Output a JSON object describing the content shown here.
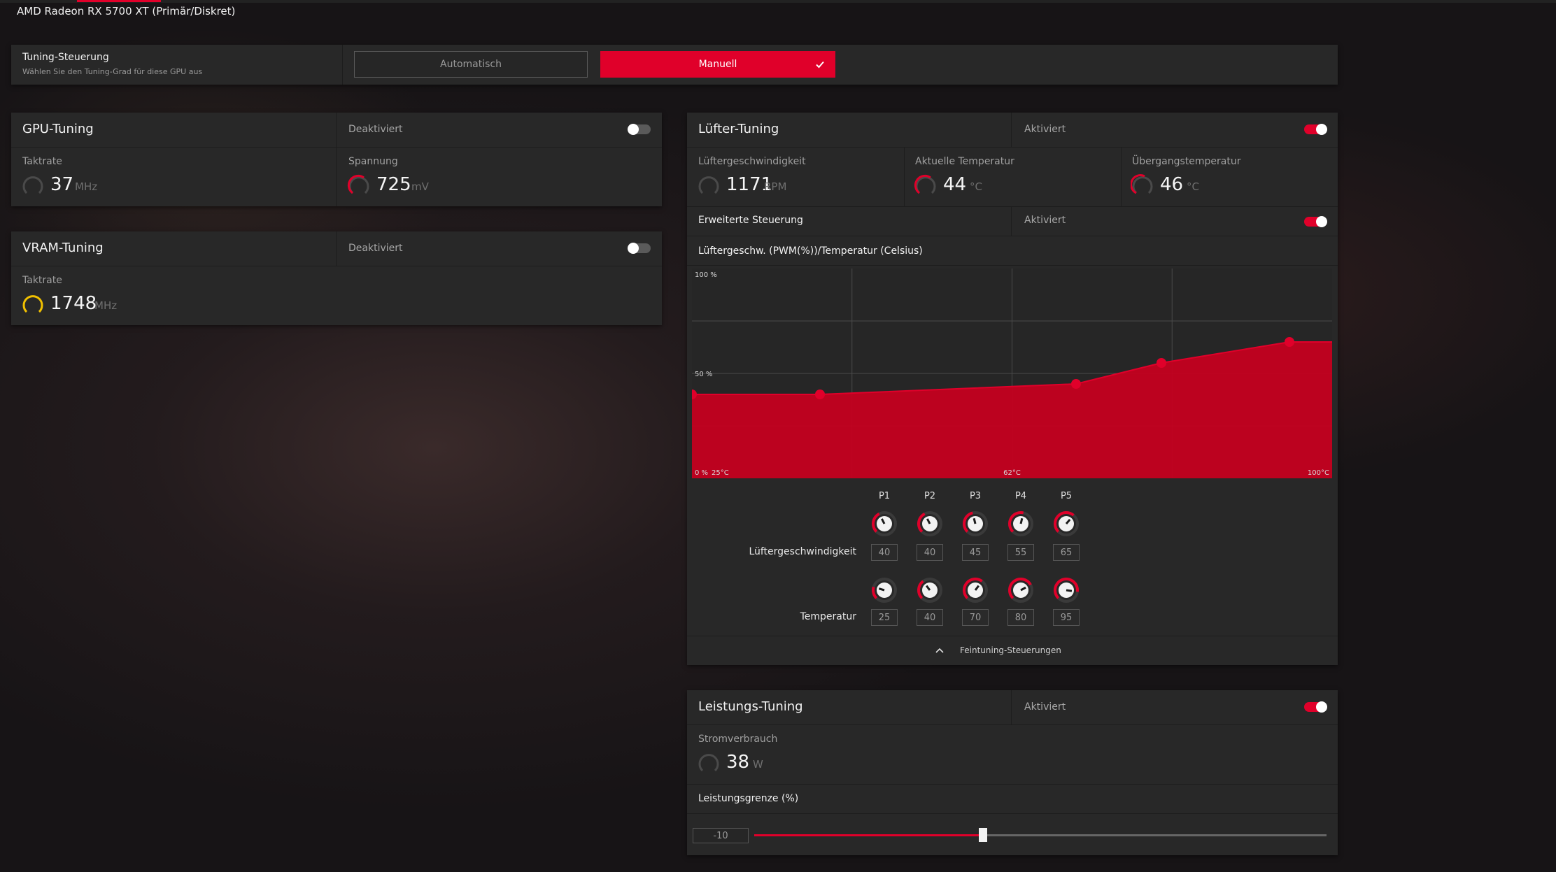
{
  "header": {
    "gpu_name": "AMD Radeon RX 5700 XT (Primär/Diskret)"
  },
  "tuning_control": {
    "title": "Tuning-Steuerung",
    "subtitle": "Wählen Sie den Tuning-Grad für diese GPU aus",
    "auto_label": "Automatisch",
    "manual_label": "Manuell",
    "selected": "Manuell"
  },
  "gpu_tuning": {
    "title": "GPU-Tuning",
    "status": "Deaktiviert",
    "enabled": false,
    "clock_label": "Taktrate",
    "clock_value": "37",
    "clock_unit": "MHz",
    "voltage_label": "Spannung",
    "voltage_value": "725",
    "voltage_unit": "mV"
  },
  "vram_tuning": {
    "title": "VRAM-Tuning",
    "status": "Deaktiviert",
    "enabled": false,
    "clock_label": "Taktrate",
    "clock_value": "1748",
    "clock_unit": "MHz"
  },
  "fan_tuning": {
    "title": "Lüfter-Tuning",
    "status": "Aktiviert",
    "enabled": true,
    "speed_label": "Lüftergeschwindigkeit",
    "speed_value": "1171",
    "speed_unit": "RPM",
    "temp_label": "Aktuelle Temperatur",
    "temp_value": "44",
    "temp_unit": "°C",
    "junction_label": "Übergangstemperatur",
    "junction_value": "46",
    "junction_unit": "°C",
    "advanced_label": "Erweiterte Steuerung",
    "advanced_status": "Aktiviert",
    "advanced_enabled": true,
    "chart_title": "Lüftergeschw. (PWM(%))/Temperatur (Celsius)",
    "points": [
      "P1",
      "P2",
      "P3",
      "P4",
      "P5"
    ],
    "speed_row_label": "Lüftergeschwindigkeit",
    "speed_values": [
      "40",
      "40",
      "45",
      "55",
      "65"
    ],
    "temp_row_label": "Temperatur",
    "temp_values": [
      "25",
      "40",
      "70",
      "80",
      "95"
    ],
    "fine_tuning_label": "Feintuning-Steuerungen"
  },
  "power_tuning": {
    "title": "Leistungs-Tuning",
    "status": "Aktiviert",
    "enabled": true,
    "power_label": "Stromverbrauch",
    "power_value": "38",
    "power_unit": "W",
    "limit_label": "Leistungsgrenze (%)",
    "limit_value": "-10",
    "limit_fraction": 0.4
  },
  "chart_data": {
    "type": "area",
    "title": "Lüftergeschw. (PWM(%))/Temperatur (Celsius)",
    "x_ticks": [
      "25°C",
      "62°C",
      "100°C"
    ],
    "y_ticks": [
      "0 %",
      "50 %",
      "100 %"
    ],
    "xlim": [
      25,
      100
    ],
    "ylim": [
      0,
      100
    ],
    "grid": true,
    "series": [
      {
        "x": [
          25,
          40,
          70,
          80,
          95,
          100
        ],
        "y": [
          40,
          40,
          45,
          55,
          65,
          65
        ]
      }
    ]
  },
  "colors": {
    "accent": "#e0002a",
    "warn": "#f0c000",
    "panel": "#282828"
  }
}
